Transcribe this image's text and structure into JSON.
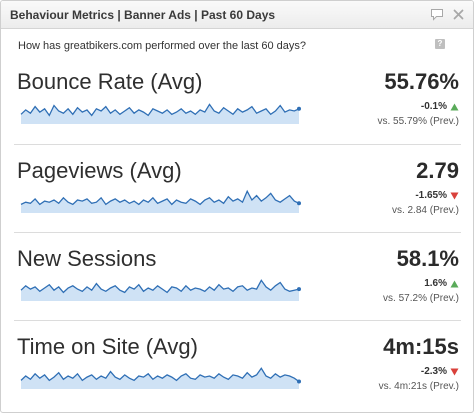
{
  "header": {
    "title": "Behaviour Metrics | Banner Ads | Past 60 Days",
    "icons": [
      "comment-icon",
      "close-icon"
    ]
  },
  "subtitle": "How has greatbikers.com performed over the last 60 days?",
  "help_icon": "?",
  "colors": {
    "up": "#5aab5a",
    "down": "#d9413b",
    "spark_line": "#2f6fb5",
    "spark_fill": "#cfe2f5"
  },
  "metrics": [
    {
      "name": "Bounce Rate (Avg)",
      "value": "55.76%",
      "change": "-0.1%",
      "direction": "up",
      "prev": "vs. 55.79% (Prev.)",
      "spark": [
        0.35,
        0.55,
        0.4,
        0.7,
        0.45,
        0.6,
        0.3,
        0.75,
        0.5,
        0.4,
        0.6,
        0.35,
        0.65,
        0.45,
        0.55,
        0.3,
        0.6,
        0.5,
        0.7,
        0.4,
        0.55,
        0.35,
        0.5,
        0.65,
        0.4,
        0.55,
        0.45,
        0.3,
        0.6,
        0.5,
        0.4,
        0.55,
        0.35,
        0.45,
        0.6,
        0.4,
        0.5,
        0.35,
        0.55,
        0.45,
        0.8,
        0.5,
        0.4,
        0.65,
        0.5,
        0.35,
        0.6,
        0.45,
        0.55,
        0.7,
        0.4,
        0.5,
        0.6,
        0.35,
        0.5,
        0.75,
        0.45,
        0.55,
        0.5,
        0.6
      ]
    },
    {
      "name": "Pageviews (Avg)",
      "value": "2.79",
      "change": "-1.65%",
      "direction": "down",
      "prev": "vs. 2.84 (Prev.)",
      "spark": [
        0.3,
        0.4,
        0.35,
        0.55,
        0.3,
        0.45,
        0.4,
        0.5,
        0.35,
        0.6,
        0.4,
        0.3,
        0.5,
        0.45,
        0.55,
        0.35,
        0.4,
        0.6,
        0.3,
        0.45,
        0.55,
        0.4,
        0.5,
        0.35,
        0.45,
        0.3,
        0.5,
        0.4,
        0.6,
        0.35,
        0.45,
        0.55,
        0.3,
        0.5,
        0.4,
        0.35,
        0.55,
        0.45,
        0.3,
        0.5,
        0.6,
        0.4,
        0.5,
        0.35,
        0.65,
        0.45,
        0.55,
        0.4,
        0.9,
        0.5,
        0.7,
        0.45,
        0.6,
        0.8,
        0.5,
        0.4,
        0.55,
        0.7,
        0.45,
        0.35
      ]
    },
    {
      "name": "New Sessions",
      "value": "58.1%",
      "change": "1.6%",
      "direction": "up",
      "prev": "vs. 57.2% (Prev.)",
      "spark": [
        0.4,
        0.6,
        0.45,
        0.55,
        0.35,
        0.5,
        0.65,
        0.4,
        0.55,
        0.3,
        0.5,
        0.6,
        0.45,
        0.35,
        0.55,
        0.4,
        0.7,
        0.45,
        0.35,
        0.5,
        0.6,
        0.4,
        0.3,
        0.55,
        0.45,
        0.65,
        0.35,
        0.5,
        0.4,
        0.6,
        0.45,
        0.3,
        0.55,
        0.5,
        0.35,
        0.6,
        0.4,
        0.5,
        0.45,
        0.35,
        0.55,
        0.4,
        0.65,
        0.45,
        0.5,
        0.35,
        0.55,
        0.6,
        0.4,
        0.5,
        0.45,
        0.85,
        0.55,
        0.4,
        0.6,
        0.75,
        0.45,
        0.35,
        0.4,
        0.45
      ]
    },
    {
      "name": "Time on Site (Avg)",
      "value": "4m:15s",
      "change": "-2.3%",
      "direction": "down",
      "prev": "vs. 4m:21s (Prev.)",
      "spark": [
        0.3,
        0.5,
        0.35,
        0.6,
        0.4,
        0.55,
        0.3,
        0.45,
        0.65,
        0.35,
        0.5,
        0.4,
        0.6,
        0.3,
        0.45,
        0.55,
        0.35,
        0.5,
        0.4,
        0.7,
        0.45,
        0.35,
        0.55,
        0.4,
        0.3,
        0.5,
        0.45,
        0.6,
        0.35,
        0.5,
        0.4,
        0.55,
        0.45,
        0.3,
        0.5,
        0.6,
        0.4,
        0.35,
        0.55,
        0.45,
        0.5,
        0.4,
        0.6,
        0.45,
        0.35,
        0.55,
        0.5,
        0.4,
        0.65,
        0.45,
        0.55,
        0.85,
        0.5,
        0.4,
        0.6,
        0.45,
        0.55,
        0.5,
        0.4,
        0.25
      ]
    }
  ]
}
